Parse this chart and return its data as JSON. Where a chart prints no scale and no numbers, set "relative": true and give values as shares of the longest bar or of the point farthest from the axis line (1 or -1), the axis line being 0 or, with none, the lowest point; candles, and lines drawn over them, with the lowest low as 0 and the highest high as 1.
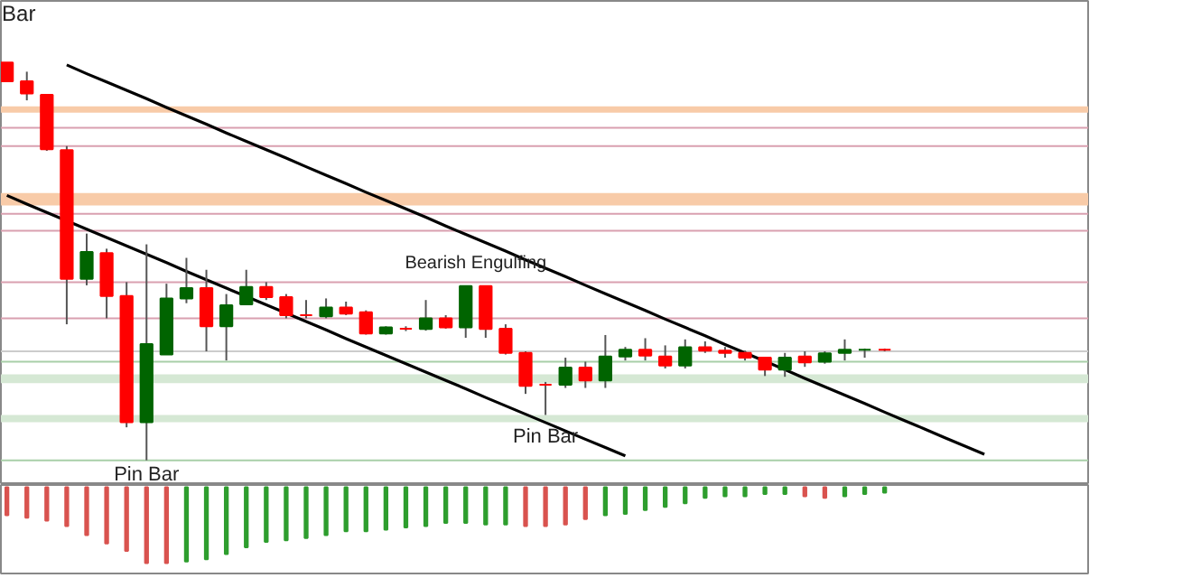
{
  "chart_data": [
    {
      "type": "candlestick",
      "relative": true,
      "tick_labels": false,
      "categories": [
        null,
        null,
        null,
        null,
        null,
        null,
        null,
        null,
        null,
        null,
        null,
        null,
        null,
        null,
        null,
        null,
        null,
        null,
        null,
        null,
        null,
        null,
        null,
        null,
        null,
        null,
        null,
        null,
        null,
        null,
        null,
        null,
        null,
        null,
        null,
        null,
        null,
        null,
        null,
        null,
        null,
        null,
        null,
        null,
        null,
        null,
        null,
        null,
        null,
        null,
        null,
        null,
        null,
        null,
        null
      ],
      "ohlc": [
        [
          1.0,
          1.0,
          0.953,
          0.953
        ],
        [
          0.953,
          0.977,
          0.905,
          0.922
        ],
        [
          0.919,
          0.919,
          0.778,
          0.782
        ],
        [
          0.78,
          0.79,
          0.342,
          0.456
        ],
        [
          0.456,
          0.57,
          0.44,
          0.524
        ],
        [
          0.521,
          0.532,
          0.357,
          0.413
        ],
        [
          0.413,
          0.448,
          0.083,
          0.096
        ],
        [
          0.096,
          0.543,
          0.0,
          0.292
        ],
        [
          0.266,
          0.444,
          0.266,
          0.407
        ],
        [
          0.407,
          0.509,
          0.395,
          0.433
        ],
        [
          0.433,
          0.479,
          0.274,
          0.337
        ],
        [
          0.337,
          0.418,
          0.251,
          0.39
        ],
        [
          0.392,
          0.479,
          0.392,
          0.436
        ],
        [
          0.436,
          0.448,
          0.403,
          0.41
        ],
        [
          0.41,
          0.418,
          0.357,
          0.365
        ],
        [
          0.365,
          0.403,
          0.357,
          0.365
        ],
        [
          0.362,
          0.407,
          0.357,
          0.384
        ],
        [
          0.384,
          0.399,
          0.365,
          0.369
        ],
        [
          0.372,
          0.377,
          0.316,
          0.319
        ],
        [
          0.319,
          0.337,
          0.316,
          0.334
        ],
        [
          0.331,
          0.337,
          0.325,
          0.331
        ],
        [
          0.33,
          0.403,
          0.326,
          0.357
        ],
        [
          0.357,
          0.365,
          0.331,
          0.334
        ],
        [
          0.334,
          0.438,
          0.308,
          0.438
        ],
        [
          0.438,
          0.438,
          0.308,
          0.33
        ],
        [
          0.331,
          0.342,
          0.266,
          0.27
        ],
        [
          0.27,
          0.274,
          0.167,
          0.187
        ],
        [
          0.19,
          0.197,
          0.114,
          0.19
        ],
        [
          0.19,
          0.258,
          0.182,
          0.233
        ],
        [
          0.233,
          0.248,
          0.182,
          0.201
        ],
        [
          0.201,
          0.315,
          0.182,
          0.261
        ],
        [
          0.261,
          0.285,
          0.251,
          0.278
        ],
        [
          0.278,
          0.307,
          0.251,
          0.263
        ],
        [
          0.261,
          0.289,
          0.231,
          0.238
        ],
        [
          0.238,
          0.304,
          0.231,
          0.284
        ],
        [
          0.284,
          0.299,
          0.27,
          0.276
        ],
        [
          0.276,
          0.285,
          0.258,
          0.27
        ],
        [
          0.27,
          0.276,
          0.251,
          0.258
        ],
        [
          0.258,
          0.258,
          0.212,
          0.228
        ],
        [
          0.228,
          0.27,
          0.21,
          0.258
        ],
        [
          0.261,
          0.274,
          0.235,
          0.246
        ],
        [
          0.248,
          0.274,
          0.243,
          0.269
        ],
        [
          0.27,
          0.304,
          0.251,
          0.278
        ],
        [
          0.278,
          0.281,
          0.258,
          0.278
        ],
        [
          0.278,
          0.281,
          0.274,
          0.278
        ],
        null,
        null,
        null,
        null,
        null,
        null,
        null,
        null,
        null,
        null
      ],
      "colors": [
        "#ff0000",
        "#ff0000",
        "#ff0000",
        "#ff0000",
        "#006400",
        "#ff0000",
        "#ff0000",
        "#006400",
        "#006400",
        "#006400",
        "#ff0000",
        "#006400",
        "#006400",
        "#ff0000",
        "#ff0000",
        "#ff0000",
        "#006400",
        "#ff0000",
        "#ff0000",
        "#006400",
        "#ff0000",
        "#006400",
        "#ff0000",
        "#006400",
        "#ff0000",
        "#ff0000",
        "#ff0000",
        "#ff0000",
        "#006400",
        "#ff0000",
        "#006400",
        "#006400",
        "#ff0000",
        "#ff0000",
        "#006400",
        "#ff0000",
        "#ff0000",
        "#ff0000",
        "#ff0000",
        "#006400",
        "#ff0000",
        "#006400",
        "#006400",
        "#006400",
        "#ff0000",
        null,
        null,
        null,
        null,
        null,
        null,
        null,
        null,
        null,
        null
      ],
      "series": [
        {
          "type": "line",
          "color": "#000000",
          "values": [
            null,
            null,
            null,
            0.994,
            0.972,
            0.951,
            0.93,
            0.909,
            0.887,
            0.866,
            0.845,
            0.823,
            0.802,
            0.781,
            0.76,
            0.738,
            0.717,
            0.696,
            0.674,
            0.653,
            0.632,
            0.611,
            0.589,
            0.568,
            0.547,
            0.526,
            0.504,
            0.483,
            0.462,
            0.44,
            0.419,
            0.398,
            0.377,
            0.355,
            0.334,
            0.313,
            0.291,
            0.27,
            0.249,
            0.228,
            0.206,
            0.185,
            0.164,
            0.143,
            0.121,
            0.1,
            0.079,
            0.057,
            0.036,
            0.015,
            null,
            null,
            null,
            null,
            null
          ]
        },
        {
          "type": "line",
          "color": "#000000",
          "values": [
            0.666,
            0.644,
            0.623,
            0.602,
            0.581,
            0.56,
            0.539,
            0.518,
            0.497,
            0.475,
            0.454,
            0.433,
            0.412,
            0.391,
            0.37,
            0.349,
            0.328,
            0.306,
            0.285,
            0.264,
            0.243,
            0.222,
            0.201,
            0.18,
            0.158,
            0.137,
            0.116,
            0.095,
            0.074,
            0.053,
            0.032,
            0.011,
            null,
            null,
            null,
            null,
            null,
            null,
            null,
            null,
            null,
            null,
            null,
            null,
            null,
            null,
            null,
            null,
            null,
            null,
            null,
            null,
            null,
            null,
            null
          ]
        }
      ],
      "bands": [
        {
          "axis": "y",
          "from": 0.874,
          "to": 0.89,
          "color": "#f8cba8"
        },
        {
          "axis": "y",
          "from": 0.641,
          "to": 0.672,
          "color": "#f8cba8"
        },
        {
          "axis": "y",
          "from": 0.194,
          "to": 0.216,
          "color": "#d5e8d4"
        },
        {
          "axis": "y",
          "from": 0.096,
          "to": 0.114,
          "color": "#d5e8d4"
        }
      ],
      "ref_lines": [
        {
          "axis": "y",
          "value": 0.836,
          "color": "#d9a0b0"
        },
        {
          "axis": "y",
          "value": 0.79,
          "color": "#d9a0b0"
        },
        {
          "axis": "y",
          "value": 0.62,
          "color": "#d9a0b0"
        },
        {
          "axis": "y",
          "value": 0.577,
          "color": "#d9a0b0"
        },
        {
          "axis": "y",
          "value": 0.448,
          "color": "#d9a0b0"
        },
        {
          "axis": "y",
          "value": 0.357,
          "color": "#d9a0b0"
        },
        {
          "axis": "y",
          "value": 0.274,
          "color": "#cccccc"
        },
        {
          "axis": "y",
          "value": 0.248,
          "color": "#a8cfa8"
        },
        {
          "axis": "y",
          "value": 0.0,
          "color": "#a8cfa8"
        }
      ],
      "annotations": [
        "Bar",
        "Bearish Engulfing",
        "Pin Bar",
        "Pin Bar"
      ]
    },
    {
      "type": "bar",
      "relative": true,
      "tick_labels": false,
      "categories": [
        null,
        null,
        null,
        null,
        null,
        null,
        null,
        null,
        null,
        null,
        null,
        null,
        null,
        null,
        null,
        null,
        null,
        null,
        null,
        null,
        null,
        null,
        null,
        null,
        null,
        null,
        null,
        null,
        null,
        null,
        null,
        null,
        null,
        null,
        null,
        null,
        null,
        null,
        null,
        null,
        null,
        null,
        null,
        null,
        null,
        null,
        null,
        null,
        null,
        null,
        null,
        null,
        null,
        null,
        null
      ],
      "values": [
        -0.37,
        -0.4,
        -0.44,
        -0.51,
        -0.63,
        -0.74,
        -0.84,
        -1,
        -1,
        -0.98,
        -0.95,
        -0.88,
        -0.79,
        -0.72,
        -0.7,
        -0.67,
        -0.63,
        -0.58,
        -0.58,
        -0.56,
        -0.53,
        -0.51,
        -0.47,
        -0.47,
        -0.49,
        -0.49,
        -0.51,
        -0.51,
        -0.49,
        -0.42,
        -0.37,
        -0.35,
        -0.3,
        -0.26,
        -0.21,
        -0.14,
        -0.12,
        -0.12,
        -0.09,
        -0.09,
        -0.12,
        -0.14,
        -0.12,
        -0.09,
        -0.07,
        null,
        null,
        null,
        null,
        null,
        null,
        null,
        null,
        null,
        null
      ],
      "colors": [
        "#d9534f",
        "#d9534f",
        "#d9534f",
        "#d9534f",
        "#d9534f",
        "#d9534f",
        "#d9534f",
        "#d9534f",
        "#d9534f",
        "#2e9e2e",
        "#2e9e2e",
        "#2e9e2e",
        "#2e9e2e",
        "#2e9e2e",
        "#2e9e2e",
        "#2e9e2e",
        "#2e9e2e",
        "#2e9e2e",
        "#2e9e2e",
        "#2e9e2e",
        "#2e9e2e",
        "#2e9e2e",
        "#2e9e2e",
        "#2e9e2e",
        "#2e9e2e",
        "#2e9e2e",
        "#d9534f",
        "#d9534f",
        "#d9534f",
        "#d9534f",
        "#2e9e2e",
        "#2e9e2e",
        "#2e9e2e",
        "#2e9e2e",
        "#2e9e2e",
        "#2e9e2e",
        "#2e9e2e",
        "#2e9e2e",
        "#2e9e2e",
        "#2e9e2e",
        "#d9534f",
        "#d9534f",
        "#2e9e2e",
        "#2e9e2e",
        "#2e9e2e",
        null,
        null,
        null,
        null,
        null,
        null,
        null,
        null,
        null,
        null
      ]
    }
  ]
}
